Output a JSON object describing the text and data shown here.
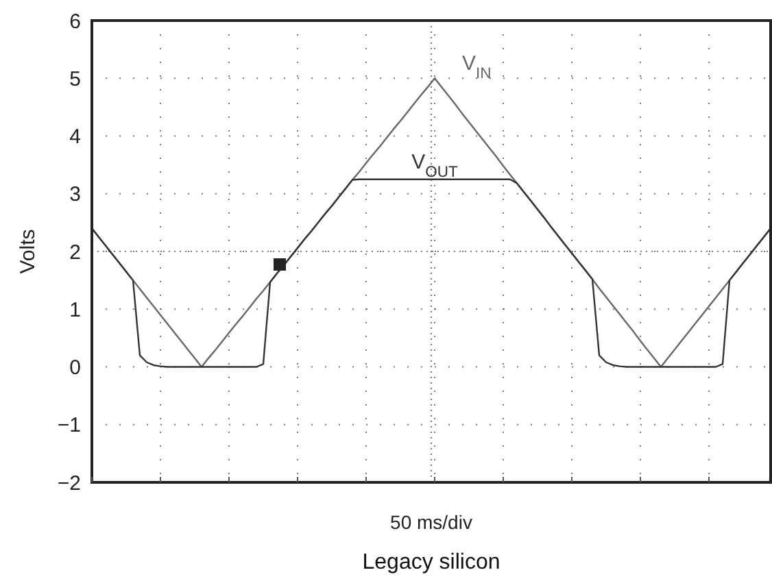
{
  "chart_data": {
    "type": "line",
    "title": "Legacy silicon",
    "xlabel": "50 ms/div",
    "ylabel": "Volts",
    "categories": [
      null,
      null,
      null,
      null,
      null,
      null,
      null,
      null,
      null,
      null,
      null,
      null,
      null,
      null,
      null,
      null,
      null,
      null,
      null,
      null,
      null,
      null,
      null,
      null,
      null,
      null,
      null,
      null,
      null,
      null,
      null,
      null,
      null,
      null,
      null,
      null,
      null,
      null,
      null,
      null,
      null,
      null,
      null,
      null,
      null,
      null,
      null,
      null,
      null,
      null,
      null,
      null,
      null,
      null,
      null,
      null,
      null,
      null,
      null,
      null,
      null,
      null,
      null,
      null,
      null,
      null,
      null,
      null,
      null,
      null,
      null,
      null,
      null,
      null,
      null,
      null,
      null,
      null,
      null,
      null,
      null,
      null,
      null,
      null,
      null,
      null,
      null,
      null,
      null,
      null,
      null,
      null,
      null,
      null,
      null,
      null,
      null,
      null,
      null,
      null
    ],
    "ylim": [
      -2,
      6
    ],
    "yticks": [
      {
        "value": -2,
        "label": "−2"
      },
      {
        "value": -1,
        "label": "−1"
      },
      0,
      1,
      2,
      3,
      4,
      5,
      6
    ],
    "tick_labels": "y",
    "grid": true,
    "line_style": "solid",
    "series": [
      {
        "name": "V$_{IN}$",
        "color": "#666666",
        "values": [
          2.4,
          2.25,
          2.1,
          1.95,
          1.8,
          1.65,
          1.5,
          1.35,
          1.2,
          1.05,
          0.9,
          0.75,
          0.6,
          0.45,
          0.3,
          0.15,
          0,
          0.15,
          0.29,
          0.44,
          0.59,
          0.74,
          0.88,
          1.03,
          1.18,
          1.32,
          1.47,
          1.62,
          1.76,
          1.91,
          2.06,
          2.21,
          2.35,
          2.5,
          2.65,
          2.79,
          2.94,
          3.09,
          3.24,
          3.38,
          3.53,
          3.68,
          3.82,
          3.97,
          4.12,
          4.26,
          4.41,
          4.56,
          4.71,
          4.85,
          5,
          4.85,
          4.7,
          4.55,
          4.39,
          4.24,
          4.09,
          3.94,
          3.79,
          3.64,
          3.48,
          3.33,
          3.18,
          3.03,
          2.88,
          2.73,
          2.58,
          2.42,
          2.27,
          2.12,
          1.97,
          1.82,
          1.67,
          1.52,
          1.36,
          1.21,
          1.06,
          0.91,
          0.76,
          0.61,
          0.45,
          0.3,
          0.15,
          0,
          0.15,
          0.3,
          0.45,
          0.6,
          0.75,
          0.9,
          1.05,
          1.2,
          1.35,
          1.5,
          1.65,
          1.8,
          1.95,
          2.1,
          2.25,
          2.4
        ]
      },
      {
        "name": "V$_{OUT}$",
        "color": "#333333",
        "values": [
          2.4,
          2.25,
          2.1,
          1.95,
          1.8,
          1.65,
          1.5,
          0.2,
          0.08,
          0.03,
          0.01,
          0,
          0,
          0,
          0,
          0,
          0,
          0,
          0,
          0,
          0,
          0,
          0,
          0,
          0,
          0.05,
          1.47,
          1.62,
          1.76,
          1.91,
          2.06,
          2.21,
          2.35,
          2.5,
          2.65,
          2.79,
          2.94,
          3.09,
          3.24,
          3.25,
          3.25,
          3.25,
          3.25,
          3.25,
          3.25,
          3.25,
          3.25,
          3.25,
          3.25,
          3.25,
          3.25,
          3.25,
          3.25,
          3.25,
          3.25,
          3.25,
          3.25,
          3.25,
          3.25,
          3.25,
          3.25,
          3.25,
          3.18,
          3.03,
          2.88,
          2.73,
          2.58,
          2.42,
          2.27,
          2.12,
          1.97,
          1.82,
          1.67,
          1.52,
          0.2,
          0.08,
          0.03,
          0.01,
          0,
          0,
          0,
          0,
          0,
          0,
          0,
          0,
          0,
          0,
          0,
          0,
          0,
          0,
          0.05,
          1.5,
          1.65,
          1.8,
          1.95,
          2.1,
          2.25,
          2.4
        ]
      }
    ]
  }
}
